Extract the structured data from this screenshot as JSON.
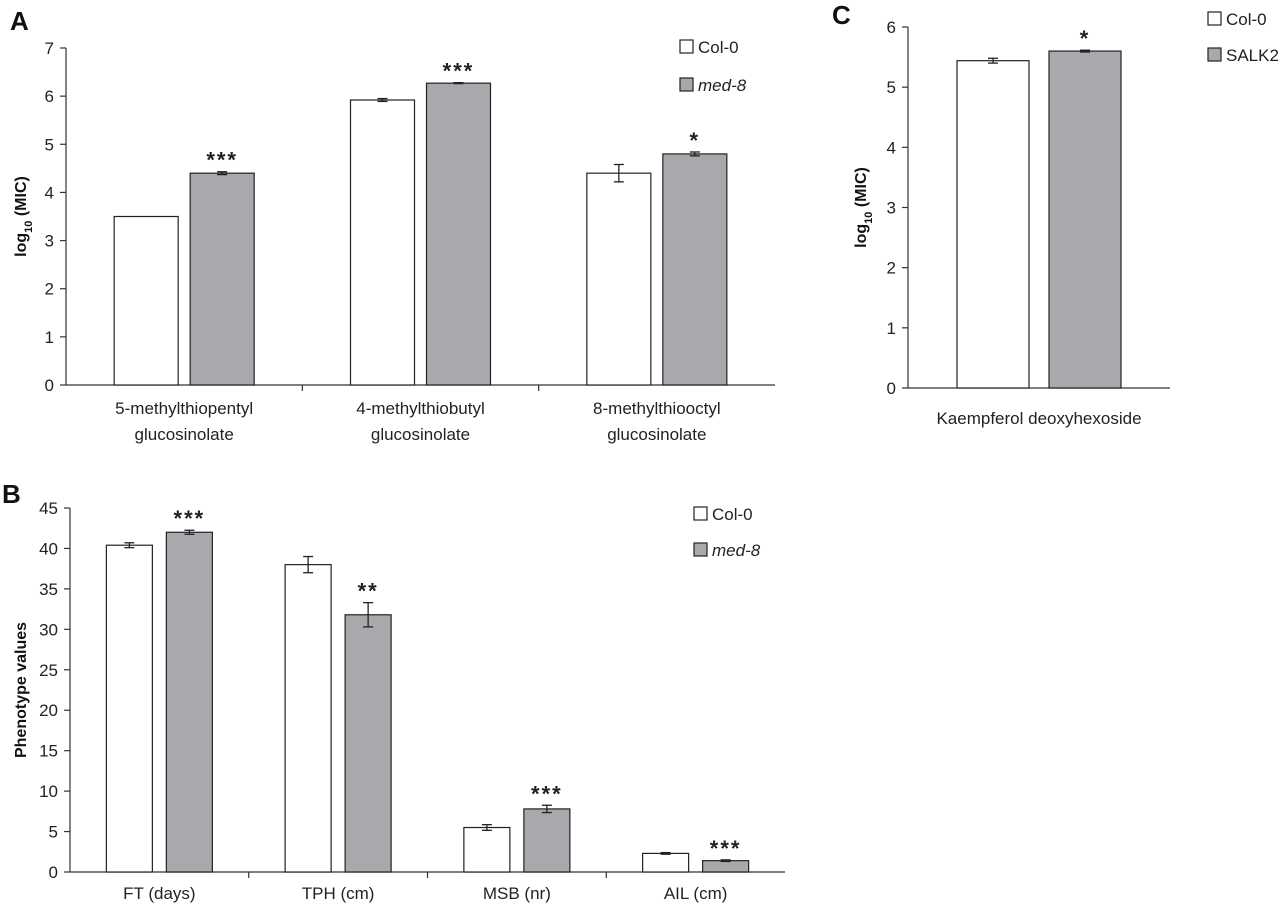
{
  "chart_data": [
    {
      "panel": "A",
      "type": "bar",
      "ylabel_main": "log",
      "ylabel_sub": "10",
      "ylabel_tail": " (MIC)",
      "ylim": [
        0,
        7
      ],
      "yticks": [
        "0",
        "1",
        "2",
        "3",
        "4",
        "5",
        "6",
        "7"
      ],
      "categories": [
        [
          "5-methylthiopentyl",
          "glucosinolate"
        ],
        [
          "4-methylthiobutyl",
          "glucosinolate"
        ],
        [
          "8-methylthiooctyl",
          "glucosinolate"
        ]
      ],
      "series": [
        {
          "name": "Col-0",
          "color": "#ffffff",
          "italic": false,
          "values": [
            3.5,
            5.92,
            4.4
          ],
          "errors": [
            0.0,
            0.03,
            0.18
          ]
        },
        {
          "name": "med-8",
          "color": "#a8a9ad",
          "italic": true,
          "values": [
            4.4,
            6.27,
            4.8
          ],
          "errors": [
            0.03,
            0.01,
            0.04
          ]
        }
      ],
      "significance": [
        [
          "",
          ""
        ],
        [
          "",
          "***"
        ],
        [
          "",
          "*"
        ]
      ],
      "significance_first": [
        "***",
        "",
        ""
      ],
      "legend": "top-right"
    },
    {
      "panel": "B",
      "type": "bar",
      "ylabel": "Phenotype values",
      "ylim": [
        0,
        45
      ],
      "yticks": [
        "0",
        "5",
        "10",
        "15",
        "20",
        "25",
        "30",
        "35",
        "40",
        "45"
      ],
      "categories": [
        [
          "FT (days)"
        ],
        [
          "TPH (cm)"
        ],
        [
          "MSB (nr)"
        ],
        [
          "AIL (cm)"
        ]
      ],
      "series": [
        {
          "name": "Col-0",
          "color": "#ffffff",
          "italic": false,
          "values": [
            40.4,
            38.0,
            5.5,
            2.3
          ],
          "errors": [
            0.3,
            1.0,
            0.35,
            0.1
          ]
        },
        {
          "name": "med-8",
          "color": "#a8a9ad",
          "italic": true,
          "values": [
            42.0,
            31.8,
            7.8,
            1.4
          ],
          "errors": [
            0.25,
            1.5,
            0.45,
            0.1
          ]
        }
      ],
      "significance": [
        "***",
        "**",
        "***",
        "***"
      ],
      "legend": "top-right"
    },
    {
      "panel": "C",
      "type": "bar",
      "ylabel_main": "log",
      "ylabel_sub": "10",
      "ylabel_tail": " (MIC)",
      "ylim": [
        0,
        6
      ],
      "yticks": [
        "0",
        "1",
        "2",
        "3",
        "4",
        "5",
        "6"
      ],
      "categories": [
        [
          "Kaempferol deoxyhexoside"
        ]
      ],
      "series": [
        {
          "name": "Col-0",
          "color": "#ffffff",
          "italic": false,
          "values": [
            5.44
          ],
          "errors": [
            0.04
          ]
        },
        {
          "name": "SALK2",
          "color": "#a8a9ad",
          "italic": false,
          "values": [
            5.6
          ],
          "errors": [
            0.015
          ]
        }
      ],
      "significance": [
        "*"
      ],
      "legend": "top-right"
    }
  ]
}
